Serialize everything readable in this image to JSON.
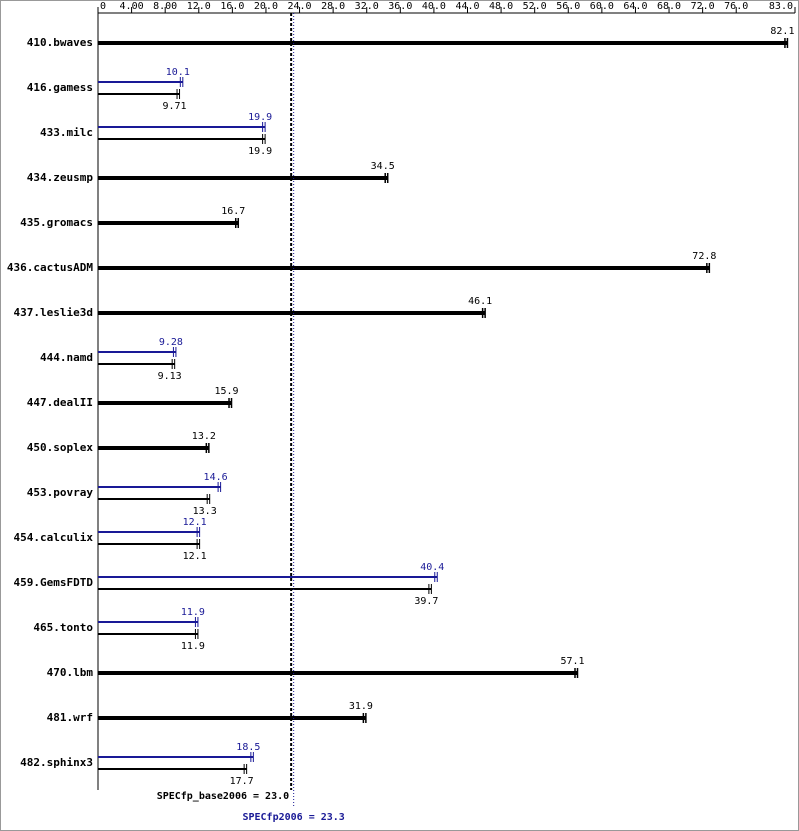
{
  "chart_data": {
    "type": "bar",
    "orientation": "horizontal",
    "categories": [
      "410.bwaves",
      "416.gamess",
      "433.milc",
      "434.zeusmp",
      "435.gromacs",
      "436.cactusADM",
      "437.leslie3d",
      "444.namd",
      "447.dealII",
      "450.soplex",
      "453.povray",
      "454.calculix",
      "459.GemsFDTD",
      "465.tonto",
      "470.lbm",
      "481.wrf",
      "482.sphinx3"
    ],
    "series": [
      {
        "color": "#000000",
        "values": [
          82.1,
          9.71,
          19.9,
          34.5,
          16.7,
          72.8,
          46.1,
          9.13,
          15.9,
          13.2,
          13.3,
          12.1,
          39.7,
          11.9,
          57.1,
          31.9,
          17.7
        ]
      },
      {
        "color": "#191996",
        "values": [
          null,
          10.1,
          19.9,
          null,
          null,
          null,
          null,
          9.28,
          null,
          null,
          14.6,
          12.1,
          40.4,
          11.9,
          null,
          null,
          18.5
        ]
      }
    ],
    "xlim": [
      0,
      83
    ],
    "xticks": [
      0,
      {
        "value": 4,
        "label": "4.00"
      },
      {
        "value": 8,
        "label": "8.00"
      },
      {
        "value": 12,
        "label": "12.0"
      },
      {
        "value": 16,
        "label": "16.0"
      },
      {
        "value": 20,
        "label": "20.0"
      },
      {
        "value": 24,
        "label": "24.0"
      },
      {
        "value": 28,
        "label": "28.0"
      },
      {
        "value": 32,
        "label": "32.0"
      },
      {
        "value": 36,
        "label": "36.0"
      },
      {
        "value": 40,
        "label": "40.0"
      },
      {
        "value": 44,
        "label": "44.0"
      },
      {
        "value": 48,
        "label": "48.0"
      },
      {
        "value": 52,
        "label": "52.0"
      },
      {
        "value": 56,
        "label": "56.0"
      },
      {
        "value": 60,
        "label": "60.0"
      },
      {
        "value": 64,
        "label": "64.0"
      },
      {
        "value": 68,
        "label": "68.0"
      },
      {
        "value": 72,
        "label": "72.0"
      },
      {
        "value": 76,
        "label": "76.0"
      },
      {
        "value": 83,
        "label": "83.0"
      }
    ],
    "reference_lines": [
      {
        "label": "SPECfp_base2006 = 23.0",
        "value": 23.0,
        "color": "#000000"
      },
      {
        "label": "SPECfp2006 = 23.3",
        "value": 23.3,
        "color": "#191996"
      }
    ]
  }
}
